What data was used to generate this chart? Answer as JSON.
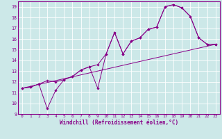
{
  "xlabel": "Windchill (Refroidissement éolien,°C)",
  "xlim": [
    -0.5,
    23.5
  ],
  "ylim": [
    9,
    19.5
  ],
  "xticks": [
    0,
    1,
    2,
    3,
    4,
    5,
    6,
    7,
    8,
    9,
    10,
    11,
    12,
    13,
    14,
    15,
    16,
    17,
    18,
    19,
    20,
    21,
    22,
    23
  ],
  "yticks": [
    9,
    10,
    11,
    12,
    13,
    14,
    15,
    16,
    17,
    18,
    19
  ],
  "bg_color": "#cce8e8",
  "line_color": "#880088",
  "grid_color": "#ffffff",
  "series1": {
    "x": [
      0,
      1,
      2,
      3,
      4,
      5,
      6,
      7,
      8,
      9,
      10,
      11,
      12,
      13,
      14,
      15,
      16,
      17,
      18,
      19,
      20,
      21,
      22,
      23
    ],
    "y": [
      11.4,
      11.5,
      11.8,
      12.1,
      12.0,
      12.2,
      12.5,
      13.1,
      13.4,
      13.6,
      14.6,
      16.6,
      14.6,
      15.8,
      16.1,
      16.9,
      17.1,
      19.0,
      19.2,
      18.9,
      18.1,
      16.1,
      15.5,
      15.5
    ]
  },
  "series2": {
    "x": [
      0,
      1,
      2,
      3,
      4,
      5,
      6,
      7,
      8,
      9,
      10,
      11,
      12,
      13,
      14,
      15,
      16,
      17,
      18,
      19,
      20,
      21,
      22,
      23
    ],
    "y": [
      11.4,
      11.5,
      11.8,
      9.5,
      11.2,
      12.2,
      12.5,
      13.1,
      13.4,
      11.4,
      14.6,
      16.6,
      14.6,
      15.8,
      16.1,
      16.9,
      17.1,
      19.0,
      19.2,
      18.9,
      18.1,
      16.1,
      15.5,
      15.5
    ]
  },
  "series3": {
    "x": [
      0,
      23
    ],
    "y": [
      11.4,
      15.5
    ]
  },
  "marker_size": 1.8,
  "line_width": 0.7,
  "tick_fontsize": 4.5,
  "xlabel_fontsize": 5.5
}
